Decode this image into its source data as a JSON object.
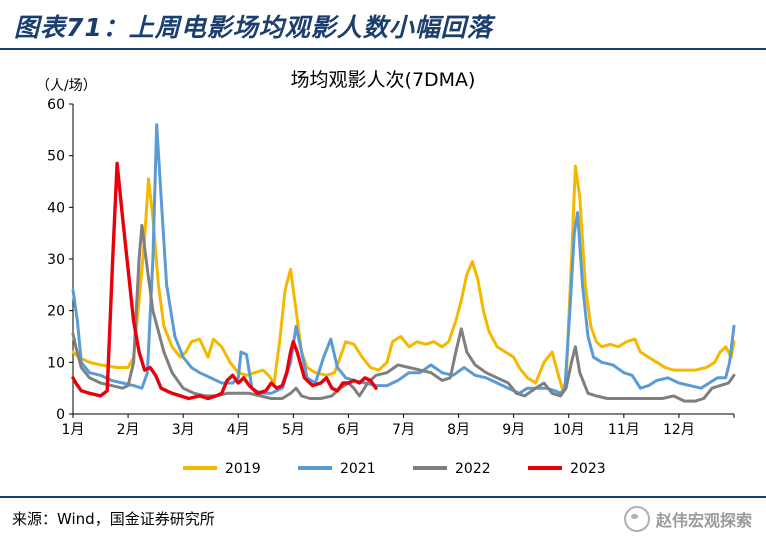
{
  "figure": {
    "title": "图表71：上周电影场均观影人数小幅回落",
    "source": "来源：Wind，国金证券研究所",
    "watermark": "赵伟宏观探索"
  },
  "chart_data": {
    "type": "line",
    "title": "场均观影人次(7DMA)",
    "ylabel": "（人/场）",
    "ylim": [
      0,
      60
    ],
    "yticks": [
      0,
      10,
      20,
      30,
      40,
      50,
      60
    ],
    "xlim": [
      1,
      13
    ],
    "xticks": [
      {
        "pos": 1,
        "label": "1月"
      },
      {
        "pos": 2,
        "label": "2月"
      },
      {
        "pos": 3,
        "label": "3月"
      },
      {
        "pos": 4,
        "label": "4月"
      },
      {
        "pos": 5,
        "label": "5月"
      },
      {
        "pos": 6,
        "label": "6月"
      },
      {
        "pos": 7,
        "label": "7月"
      },
      {
        "pos": 8,
        "label": "8月"
      },
      {
        "pos": 9,
        "label": "9月"
      },
      {
        "pos": 10,
        "label": "10月"
      },
      {
        "pos": 11,
        "label": "11月"
      },
      {
        "pos": 12,
        "label": "12月"
      }
    ],
    "grid": false,
    "legend_position": "bottom",
    "series": [
      {
        "name": "2019",
        "color": "#f5b800",
        "points": [
          [
            1.0,
            12
          ],
          [
            1.1,
            11
          ],
          [
            1.3,
            10
          ],
          [
            1.5,
            9.5
          ],
          [
            1.8,
            9
          ],
          [
            2.0,
            9
          ],
          [
            2.1,
            11
          ],
          [
            2.2,
            22
          ],
          [
            2.3,
            34
          ],
          [
            2.37,
            45.5
          ],
          [
            2.45,
            38
          ],
          [
            2.55,
            25
          ],
          [
            2.65,
            17
          ],
          [
            2.8,
            13
          ],
          [
            2.95,
            11
          ],
          [
            3.05,
            12
          ],
          [
            3.15,
            14
          ],
          [
            3.3,
            14.5
          ],
          [
            3.45,
            11
          ],
          [
            3.55,
            14.5
          ],
          [
            3.7,
            13
          ],
          [
            3.85,
            10
          ],
          [
            4.0,
            8
          ],
          [
            4.15,
            7.5
          ],
          [
            4.3,
            8
          ],
          [
            4.45,
            8.5
          ],
          [
            4.55,
            7.5
          ],
          [
            4.65,
            6
          ],
          [
            4.75,
            14
          ],
          [
            4.85,
            24
          ],
          [
            4.95,
            28
          ],
          [
            5.05,
            20
          ],
          [
            5.15,
            12
          ],
          [
            5.25,
            9
          ],
          [
            5.4,
            8
          ],
          [
            5.6,
            7.5
          ],
          [
            5.75,
            8
          ],
          [
            5.85,
            11
          ],
          [
            5.95,
            14
          ],
          [
            6.1,
            13.5
          ],
          [
            6.25,
            11
          ],
          [
            6.4,
            9
          ],
          [
            6.55,
            8.5
          ],
          [
            6.7,
            10
          ],
          [
            6.8,
            14
          ],
          [
            6.95,
            15
          ],
          [
            7.1,
            13
          ],
          [
            7.25,
            14
          ],
          [
            7.4,
            13.5
          ],
          [
            7.55,
            14
          ],
          [
            7.7,
            13
          ],
          [
            7.82,
            14
          ],
          [
            7.95,
            18
          ],
          [
            8.05,
            22
          ],
          [
            8.15,
            27
          ],
          [
            8.25,
            29.5
          ],
          [
            8.35,
            26
          ],
          [
            8.45,
            20
          ],
          [
            8.55,
            16
          ],
          [
            8.7,
            13
          ],
          [
            8.85,
            12
          ],
          [
            9.0,
            11
          ],
          [
            9.1,
            9
          ],
          [
            9.25,
            7
          ],
          [
            9.4,
            6
          ],
          [
            9.55,
            10
          ],
          [
            9.7,
            12
          ],
          [
            9.8,
            8
          ],
          [
            9.88,
            5
          ],
          [
            9.95,
            6
          ],
          [
            10.05,
            30
          ],
          [
            10.12,
            48
          ],
          [
            10.2,
            42
          ],
          [
            10.3,
            25
          ],
          [
            10.4,
            17
          ],
          [
            10.5,
            14
          ],
          [
            10.6,
            13
          ],
          [
            10.75,
            13.5
          ],
          [
            10.9,
            13
          ],
          [
            11.05,
            14
          ],
          [
            11.2,
            14.5
          ],
          [
            11.3,
            12
          ],
          [
            11.45,
            11
          ],
          [
            11.6,
            10
          ],
          [
            11.75,
            9
          ],
          [
            11.9,
            8.5
          ],
          [
            12.1,
            8.5
          ],
          [
            12.3,
            8.5
          ],
          [
            12.5,
            9
          ],
          [
            12.65,
            10
          ],
          [
            12.75,
            12
          ],
          [
            12.85,
            13
          ],
          [
            12.95,
            11
          ],
          [
            13.0,
            14
          ]
        ]
      },
      {
        "name": "2021",
        "color": "#5b9bd5",
        "points": [
          [
            1.0,
            24
          ],
          [
            1.08,
            18
          ],
          [
            1.15,
            10
          ],
          [
            1.3,
            8
          ],
          [
            1.5,
            7.5
          ],
          [
            1.7,
            6.5
          ],
          [
            1.9,
            6
          ],
          [
            2.1,
            5.5
          ],
          [
            2.25,
            5
          ],
          [
            2.35,
            8
          ],
          [
            2.45,
            30
          ],
          [
            2.52,
            56
          ],
          [
            2.6,
            42
          ],
          [
            2.7,
            25
          ],
          [
            2.85,
            15
          ],
          [
            3.0,
            11
          ],
          [
            3.15,
            9
          ],
          [
            3.3,
            8
          ],
          [
            3.5,
            7
          ],
          [
            3.7,
            6
          ],
          [
            3.9,
            6
          ],
          [
            4.0,
            7
          ],
          [
            4.05,
            12
          ],
          [
            4.15,
            11.5
          ],
          [
            4.25,
            5
          ],
          [
            4.4,
            4
          ],
          [
            4.6,
            4
          ],
          [
            4.8,
            5
          ],
          [
            4.95,
            10
          ],
          [
            5.05,
            17
          ],
          [
            5.15,
            12
          ],
          [
            5.25,
            7
          ],
          [
            5.4,
            6
          ],
          [
            5.55,
            11
          ],
          [
            5.68,
            14.5
          ],
          [
            5.8,
            9
          ],
          [
            5.95,
            7
          ],
          [
            6.1,
            6.5
          ],
          [
            6.3,
            6
          ],
          [
            6.5,
            5.5
          ],
          [
            6.7,
            5.5
          ],
          [
            6.9,
            6.5
          ],
          [
            7.1,
            8
          ],
          [
            7.3,
            8
          ],
          [
            7.5,
            9.5
          ],
          [
            7.7,
            8
          ],
          [
            7.9,
            7.5
          ],
          [
            8.1,
            9
          ],
          [
            8.3,
            7.5
          ],
          [
            8.5,
            7
          ],
          [
            8.7,
            6
          ],
          [
            8.9,
            5
          ],
          [
            9.1,
            4
          ],
          [
            9.25,
            5
          ],
          [
            9.4,
            5
          ],
          [
            9.6,
            5
          ],
          [
            9.75,
            4.5
          ],
          [
            9.85,
            4
          ],
          [
            9.93,
            5
          ],
          [
            10.02,
            20
          ],
          [
            10.1,
            35
          ],
          [
            10.16,
            39
          ],
          [
            10.25,
            25
          ],
          [
            10.35,
            15
          ],
          [
            10.45,
            11
          ],
          [
            10.6,
            10
          ],
          [
            10.8,
            9.5
          ],
          [
            11.0,
            8
          ],
          [
            11.15,
            7.5
          ],
          [
            11.3,
            5
          ],
          [
            11.45,
            5.5
          ],
          [
            11.6,
            6.5
          ],
          [
            11.8,
            7
          ],
          [
            12.0,
            6
          ],
          [
            12.2,
            5.5
          ],
          [
            12.4,
            5
          ],
          [
            12.55,
            6
          ],
          [
            12.7,
            7
          ],
          [
            12.85,
            7
          ],
          [
            12.92,
            10
          ],
          [
            13.0,
            17
          ]
        ]
      },
      {
        "name": "2022",
        "color": "#7f7f7f",
        "points": [
          [
            1.0,
            15.5
          ],
          [
            1.05,
            13
          ],
          [
            1.15,
            9
          ],
          [
            1.3,
            7
          ],
          [
            1.5,
            6
          ],
          [
            1.7,
            5.5
          ],
          [
            1.9,
            5
          ],
          [
            2.0,
            5.5
          ],
          [
            2.1,
            10
          ],
          [
            2.2,
            30
          ],
          [
            2.25,
            36.5
          ],
          [
            2.35,
            28
          ],
          [
            2.45,
            20
          ],
          [
            2.55,
            16
          ],
          [
            2.65,
            12
          ],
          [
            2.8,
            8
          ],
          [
            3.0,
            5
          ],
          [
            3.2,
            4
          ],
          [
            3.4,
            3.5
          ],
          [
            3.6,
            3.5
          ],
          [
            3.8,
            4
          ],
          [
            4.0,
            4
          ],
          [
            4.2,
            4
          ],
          [
            4.4,
            3.5
          ],
          [
            4.6,
            3
          ],
          [
            4.8,
            3
          ],
          [
            4.95,
            4
          ],
          [
            5.05,
            5
          ],
          [
            5.15,
            3.5
          ],
          [
            5.3,
            3
          ],
          [
            5.5,
            3
          ],
          [
            5.7,
            3.5
          ],
          [
            5.85,
            5
          ],
          [
            6.0,
            6
          ],
          [
            6.1,
            5
          ],
          [
            6.2,
            3.5
          ],
          [
            6.35,
            6
          ],
          [
            6.5,
            7.5
          ],
          [
            6.7,
            8
          ],
          [
            6.9,
            9.5
          ],
          [
            7.1,
            9
          ],
          [
            7.3,
            8.5
          ],
          [
            7.5,
            8
          ],
          [
            7.7,
            6.5
          ],
          [
            7.85,
            7
          ],
          [
            7.95,
            12
          ],
          [
            8.05,
            16.5
          ],
          [
            8.15,
            12
          ],
          [
            8.3,
            9.5
          ],
          [
            8.5,
            8
          ],
          [
            8.7,
            7
          ],
          [
            8.9,
            6
          ],
          [
            9.05,
            4
          ],
          [
            9.2,
            3.5
          ],
          [
            9.4,
            5
          ],
          [
            9.55,
            6
          ],
          [
            9.7,
            4
          ],
          [
            9.85,
            3.5
          ],
          [
            9.95,
            5
          ],
          [
            10.05,
            10
          ],
          [
            10.12,
            13
          ],
          [
            10.2,
            8
          ],
          [
            10.35,
            4
          ],
          [
            10.5,
            3.5
          ],
          [
            10.7,
            3
          ],
          [
            10.9,
            3
          ],
          [
            11.1,
            3
          ],
          [
            11.3,
            3
          ],
          [
            11.5,
            3
          ],
          [
            11.7,
            3
          ],
          [
            11.9,
            3.5
          ],
          [
            12.1,
            2.5
          ],
          [
            12.3,
            2.5
          ],
          [
            12.45,
            3
          ],
          [
            12.6,
            5
          ],
          [
            12.75,
            5.5
          ],
          [
            12.9,
            6
          ],
          [
            13.0,
            7.5
          ]
        ]
      },
      {
        "name": "2023",
        "color": "#e8000b",
        "points": [
          [
            1.0,
            7
          ],
          [
            1.05,
            6
          ],
          [
            1.15,
            4.5
          ],
          [
            1.3,
            4
          ],
          [
            1.5,
            3.5
          ],
          [
            1.62,
            4.5
          ],
          [
            1.72,
            30
          ],
          [
            1.8,
            48.5
          ],
          [
            1.9,
            38
          ],
          [
            2.0,
            28
          ],
          [
            2.1,
            18
          ],
          [
            2.2,
            12
          ],
          [
            2.3,
            8.5
          ],
          [
            2.4,
            9
          ],
          [
            2.5,
            7.5
          ],
          [
            2.6,
            5
          ],
          [
            2.7,
            4.5
          ],
          [
            2.8,
            4
          ],
          [
            2.95,
            3.5
          ],
          [
            3.1,
            3
          ],
          [
            3.3,
            3.5
          ],
          [
            3.45,
            3
          ],
          [
            3.6,
            3.5
          ],
          [
            3.7,
            4
          ],
          [
            3.8,
            6.5
          ],
          [
            3.9,
            7.5
          ],
          [
            4.0,
            6
          ],
          [
            4.1,
            7
          ],
          [
            4.2,
            5.5
          ],
          [
            4.35,
            4
          ],
          [
            4.5,
            4.5
          ],
          [
            4.6,
            6
          ],
          [
            4.7,
            5
          ],
          [
            4.8,
            5.5
          ],
          [
            4.88,
            8
          ],
          [
            4.95,
            12
          ],
          [
            5.0,
            14
          ],
          [
            5.07,
            12
          ],
          [
            5.2,
            7
          ],
          [
            5.35,
            5.5
          ],
          [
            5.5,
            6
          ],
          [
            5.6,
            7
          ],
          [
            5.7,
            5
          ],
          [
            5.8,
            4.5
          ],
          [
            5.9,
            6
          ],
          [
            6.0,
            6
          ],
          [
            6.1,
            6.5
          ],
          [
            6.2,
            6
          ],
          [
            6.3,
            7
          ],
          [
            6.4,
            6.5
          ],
          [
            6.5,
            5
          ]
        ]
      }
    ]
  }
}
